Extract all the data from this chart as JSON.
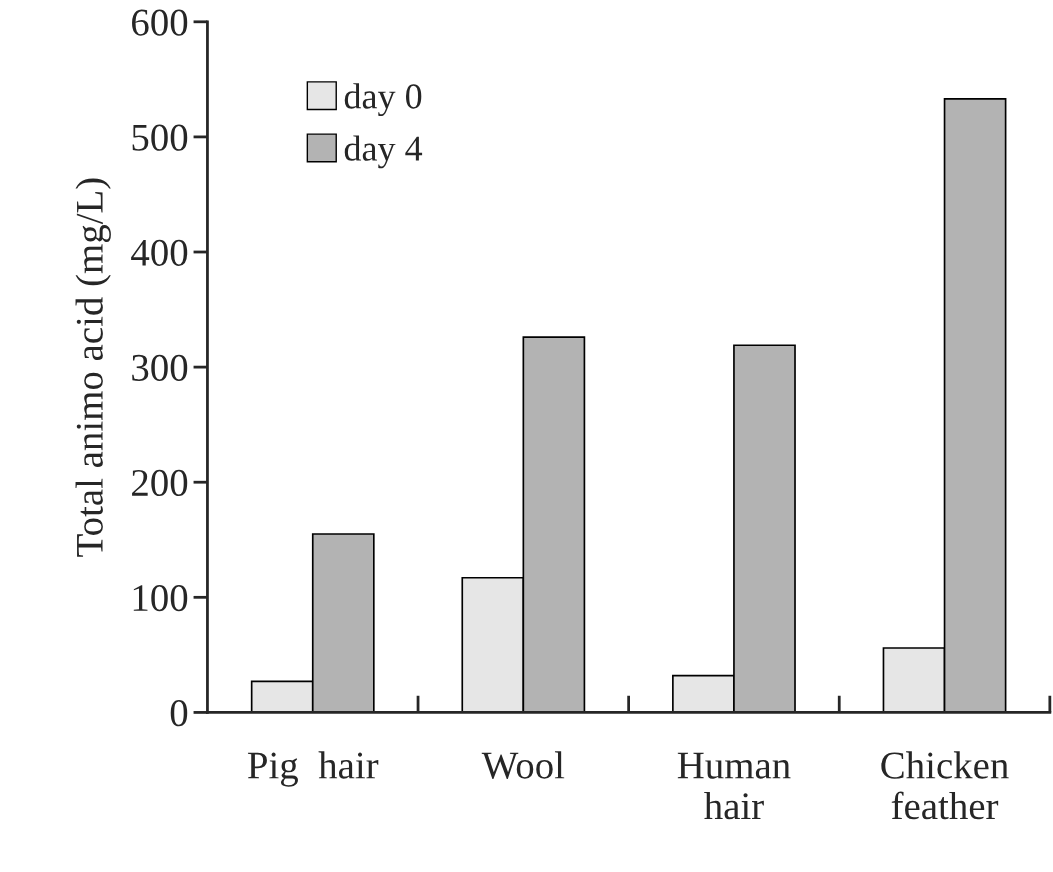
{
  "chart_data": {
    "type": "bar",
    "ylabel": "Total animo acid (mg/L)",
    "categories": [
      "Pig  hair",
      "Wool",
      "Human\nhair",
      "Chicken\nfeather"
    ],
    "series": [
      {
        "name": "day 0",
        "color": "#e6e6e6",
        "values": [
          27,
          117,
          32,
          56
        ]
      },
      {
        "name": "day 4",
        "color": "#b3b3b3",
        "values": [
          155,
          326,
          319,
          533
        ]
      }
    ],
    "ylim": [
      0,
      600
    ],
    "yticks": [
      0,
      100,
      200,
      300,
      400,
      500,
      600
    ],
    "grid": false,
    "legend": "top left"
  }
}
